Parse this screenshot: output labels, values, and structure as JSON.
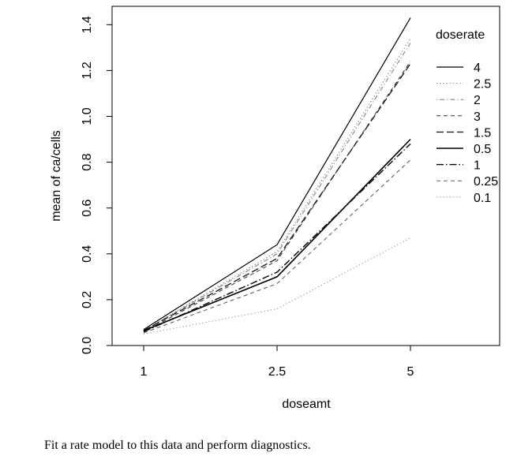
{
  "chart_data": {
    "type": "line",
    "title": "",
    "xlabel": "doseamt",
    "ylabel": "mean of  ca/cells",
    "categories": [
      "1",
      "2.5",
      "5"
    ],
    "ylim": [
      0.0,
      1.48
    ],
    "yticks": [
      "0.0",
      "0.2",
      "0.4",
      "0.6",
      "0.8",
      "1.0",
      "1.2",
      "1.4"
    ],
    "legend_title": "doserate",
    "legend_position": "top-right",
    "grid": false,
    "series": [
      {
        "name": "4",
        "values": [
          0.07,
          0.44,
          1.43
        ],
        "color": "#000000",
        "dash": "solid",
        "width": 1.2
      },
      {
        "name": "2.5",
        "values": [
          0.065,
          0.41,
          1.34
        ],
        "color": "#666666",
        "dash": "dotted",
        "width": 1.0
      },
      {
        "name": "2",
        "values": [
          0.065,
          0.4,
          1.32
        ],
        "color": "#777777",
        "dash": "dotdash",
        "width": 1.0
      },
      {
        "name": "3",
        "values": [
          0.06,
          0.37,
          1.24
        ],
        "color": "#333333",
        "dash": "dashed",
        "width": 1.0
      },
      {
        "name": "1.5",
        "values": [
          0.065,
          0.38,
          1.23
        ],
        "color": "#222222",
        "dash": "longdash",
        "width": 1.4
      },
      {
        "name": "0.5",
        "values": [
          0.065,
          0.3,
          0.9
        ],
        "color": "#000000",
        "dash": "solid",
        "width": 1.6
      },
      {
        "name": "1",
        "values": [
          0.06,
          0.32,
          0.88
        ],
        "color": "#000000",
        "dash": "longdashdot",
        "width": 1.4
      },
      {
        "name": "0.25",
        "values": [
          0.055,
          0.27,
          0.81
        ],
        "color": "#555555",
        "dash": "dashed",
        "width": 1.0
      },
      {
        "name": "0.1",
        "values": [
          0.05,
          0.16,
          0.47
        ],
        "color": "#888888",
        "dash": "dotted",
        "width": 1.0
      }
    ]
  },
  "caption": "Fit a rate model to this data and perform diagnostics."
}
